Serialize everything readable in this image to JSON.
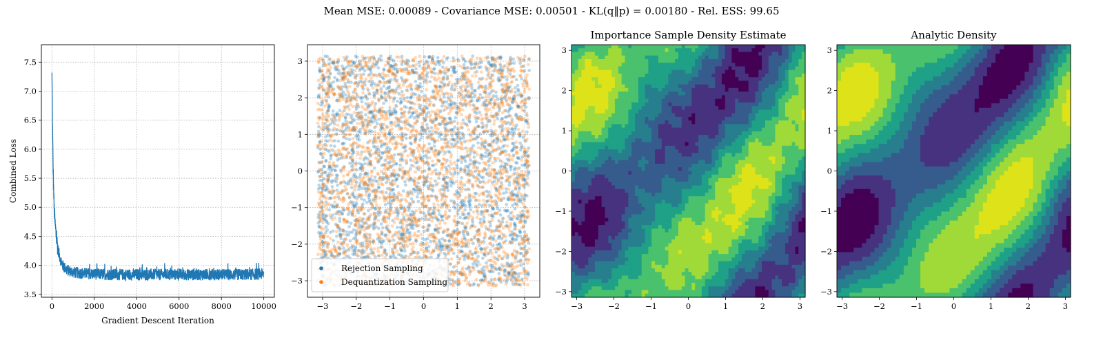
{
  "suptitle": "Mean MSE: 0.00089 - Covariance MSE: 0.00501 - KL(q‖p) = 0.00180 - Rel. ESS: 99.65",
  "chart_data": [
    {
      "type": "line",
      "title": "",
      "xlabel": "Gradient Descent Iteration",
      "ylabel": "Combined Loss",
      "xlim": [
        -500,
        10500
      ],
      "ylim": [
        3.45,
        7.8
      ],
      "xticks": [
        0,
        2000,
        4000,
        6000,
        8000,
        10000
      ],
      "xtick_labels": [
        "0",
        "2000",
        "4000",
        "6000",
        "8000",
        "10000"
      ],
      "yticks": [
        3.5,
        4.0,
        4.5,
        5.0,
        5.5,
        6.0,
        6.5,
        7.0,
        7.5
      ],
      "ytick_labels": [
        "3.5",
        "4.0",
        "4.5",
        "5.0",
        "5.5",
        "6.0",
        "6.5",
        "7.0",
        "7.5"
      ],
      "grid": true,
      "color": "#1f77b4",
      "series": [
        {
          "name": "",
          "x": [
            0,
            20,
            40,
            60,
            80,
            100,
            150,
            200,
            300,
            400,
            500,
            700,
            1000,
            1500,
            2000,
            3000,
            4000,
            5000,
            6000,
            7000,
            8000,
            9000,
            10000
          ],
          "y": [
            7.27,
            6.6,
            6.0,
            5.6,
            5.3,
            5.0,
            4.7,
            4.5,
            4.25,
            4.1,
            4.0,
            3.92,
            3.88,
            3.86,
            3.85,
            3.84,
            3.84,
            3.84,
            3.84,
            3.84,
            3.84,
            3.84,
            3.85
          ]
        }
      ],
      "noise_band": 0.1
    },
    {
      "type": "scatter",
      "title": "",
      "xlim": [
        -3.45,
        3.45
      ],
      "ylim": [
        -3.45,
        3.45
      ],
      "xticks": [
        -3,
        -2,
        -1,
        0,
        1,
        2,
        3
      ],
      "xtick_labels": [
        "−3",
        "−2",
        "−1",
        "0",
        "1",
        "2",
        "3"
      ],
      "yticks": [
        -3,
        -2,
        -1,
        0,
        1,
        2,
        3
      ],
      "ytick_labels": [
        "−3",
        "−2",
        "−1",
        "0",
        "1",
        "2",
        "3"
      ],
      "grid": true,
      "legend_position": "lower-left",
      "series": [
        {
          "name": "Rejection Sampling",
          "color": "#1f77b4",
          "n_points": 2600,
          "range": [
            -3.14,
            3.14
          ]
        },
        {
          "name": "Dequantization Sampling",
          "color": "#ff7f0e",
          "n_points": 2600,
          "range": [
            -3.14,
            3.14
          ]
        }
      ]
    },
    {
      "type": "heatmap",
      "title": "Importance Sample Density Estimate",
      "xlim": [
        -3.14,
        3.14
      ],
      "ylim": [
        -3.14,
        3.14
      ],
      "xticks": [
        -3,
        -2,
        -1,
        0,
        1,
        2,
        3
      ],
      "xtick_labels": [
        "−3",
        "−2",
        "−1",
        "0",
        "1",
        "2",
        "3"
      ],
      "yticks": [
        -3,
        -2,
        -1,
        0,
        1,
        2,
        3
      ],
      "ytick_labels": [
        "−3",
        "−2",
        "−1",
        "0",
        "1",
        "2",
        "3"
      ],
      "levels": 8,
      "colormap": [
        "#440154",
        "#46327e",
        "#365c8d",
        "#277f8e",
        "#1fa187",
        "#4ac16d",
        "#a0da39",
        "#dde318"
      ],
      "noisy": true
    },
    {
      "type": "heatmap",
      "title": "Analytic Density",
      "xlim": [
        -3.14,
        3.14
      ],
      "ylim": [
        -3.14,
        3.14
      ],
      "xticks": [
        -3,
        -2,
        -1,
        0,
        1,
        2,
        3
      ],
      "xtick_labels": [
        "−3",
        "−2",
        "−1",
        "0",
        "1",
        "2",
        "3"
      ],
      "yticks": [
        -3,
        -2,
        -1,
        0,
        1,
        2,
        3
      ],
      "ytick_labels": [
        "−3",
        "−2",
        "−1",
        "0",
        "1",
        "2",
        "3"
      ],
      "levels": 8,
      "colormap": [
        "#440154",
        "#46327e",
        "#365c8d",
        "#277f8e",
        "#1fa187",
        "#4ac16d",
        "#a0da39",
        "#dde318"
      ],
      "noisy": false
    }
  ]
}
